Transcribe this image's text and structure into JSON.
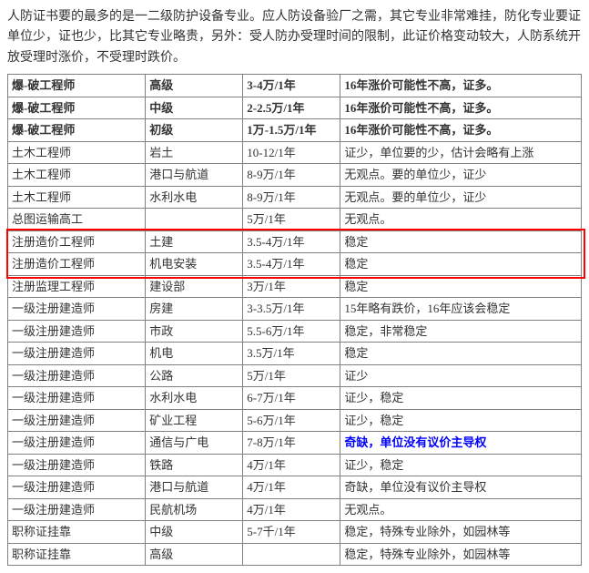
{
  "intro": "人防证书要的最多的是一二级防护设备专业。应人防设备验厂之需，其它专业非常难挂，防化专业要证单位少，证也少，比其它专业略贵，另外：受人防办受理时间的限制，此证价格变动较大，人防系统开放受理时涨价，不受理时跌价。",
  "table": {
    "rows": [
      {
        "c1": "爆-破工程师",
        "c2": "高级",
        "c3": "3-4万/1年",
        "c4": "16年涨价可能性不高，证多。",
        "bold": true
      },
      {
        "c1": "爆-破工程师",
        "c2": "中级",
        "c3": "2-2.5万/1年",
        "c4": "16年涨价可能性不高，证多。",
        "bold": true
      },
      {
        "c1": "爆-破工程师",
        "c2": "初级",
        "c3": "1万-1.5万/1年",
        "c4": "16年涨价可能性不高，证多。",
        "bold": true
      },
      {
        "c1": "土木工程师",
        "c2": "岩土",
        "c3": "10-12/1年",
        "c4": "证少，单位要的少，估计会略有上涨"
      },
      {
        "c1": "土木工程师",
        "c2": "港口与航道",
        "c3": "8-9万/1年",
        "c4": "无观点。要的单位少，证少"
      },
      {
        "c1": "土木工程师",
        "c2": "水利水电",
        "c3": "8-9万/1年",
        "c4": "无观点。要的单位少，证少"
      },
      {
        "c1": "总图运输高工",
        "c2": "",
        "c3": "5万/1年",
        "c4": "无观点。"
      },
      {
        "c1": "注册造价工程师",
        "c2": "土建",
        "c3": "3.5-4万/1年",
        "c4": "稳定",
        "hl": true
      },
      {
        "c1": "注册造价工程师",
        "c2": "机电安装",
        "c3": "3.5-4万/1年",
        "c4": "稳定",
        "hl": true
      },
      {
        "c1": "注册监理工程师",
        "c2": "建设部",
        "c3": "3万/1年",
        "c4": "稳定"
      },
      {
        "c1": "一级注册建造师",
        "c2": "房建",
        "c3": "3-3.5万/1年",
        "c4": "15年略有跌价，16年应该会稳定"
      },
      {
        "c1": "一级注册建造师",
        "c2": "市政",
        "c3": "5.5-6万/1年",
        "c4": "稳定，非常稳定"
      },
      {
        "c1": "一级注册建造师",
        "c2": "机电",
        "c3": "3.5万/1年",
        "c4": "稳定"
      },
      {
        "c1": "一级注册建造师",
        "c2": "公路",
        "c3": "5万/1年",
        "c4": "证少"
      },
      {
        "c1": "一级注册建造师",
        "c2": "水利水电",
        "c3": "6-7万/1年",
        "c4": "证少，稳定"
      },
      {
        "c1": "一级注册建造师",
        "c2": "矿业工程",
        "c3": "5-6万/1年",
        "c4": "证少，稳定"
      },
      {
        "c1": "一级注册建造师",
        "c2": "通信与广电",
        "c3": "7-8万/1年",
        "c4": "奇缺，单位没有议价主导权",
        "c4_special": true
      },
      {
        "c1": "一级注册建造师",
        "c2": "铁路",
        "c3": "4万/1年",
        "c4": "证少，稳定"
      },
      {
        "c1": "一级注册建造师",
        "c2": "港口与航道",
        "c3": "4万/1年",
        "c4": "奇缺，单位没有议价主导权"
      },
      {
        "c1": "一级注册建造师",
        "c2": "民航机场",
        "c3": "4万/1年",
        "c4": "无观点。"
      },
      {
        "c1": "职称证挂靠",
        "c2": "中级",
        "c3": "5-7千/1年",
        "c4": "稳定，特殊专业除外，如园林等"
      },
      {
        "c1": "职称证挂靠",
        "c2": "高级",
        "c3": "",
        "c4": "稳定，特殊专业除外，如园林等"
      }
    ]
  },
  "highlight": {
    "color": "#ff0000"
  }
}
